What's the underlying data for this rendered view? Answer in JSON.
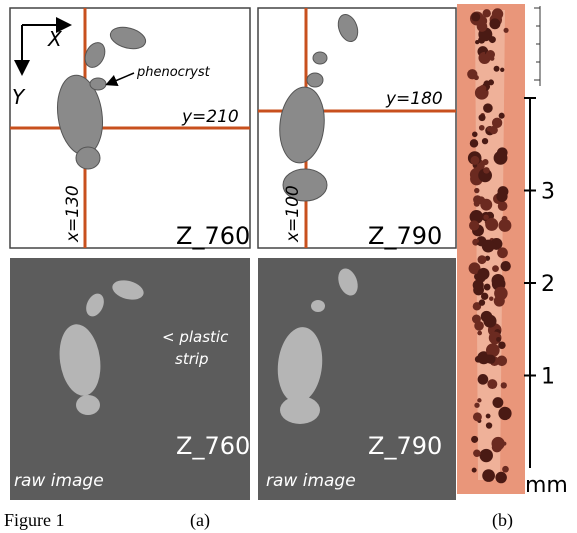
{
  "panels": [
    {
      "axis_x": "X",
      "axis_y": "Y",
      "annotation": "phenocryst",
      "y_line": "y=210",
      "x_line": "x=130",
      "slice": "Z_760"
    },
    {
      "y_line": "y=180",
      "x_line": "x=100",
      "slice": "Z_790"
    },
    {
      "annotation": [
        "< plastic",
        "strip"
      ],
      "slice": "Z_760",
      "kind": "raw image"
    },
    {
      "slice": "Z_790",
      "kind": "raw image"
    }
  ],
  "scale": {
    "ticks": [
      1,
      2,
      3
    ],
    "lim": [
      0,
      4
    ],
    "unit": "mm"
  },
  "caption": {
    "figure": "Figure 1",
    "a": "(a)",
    "b": "(b)"
  }
}
